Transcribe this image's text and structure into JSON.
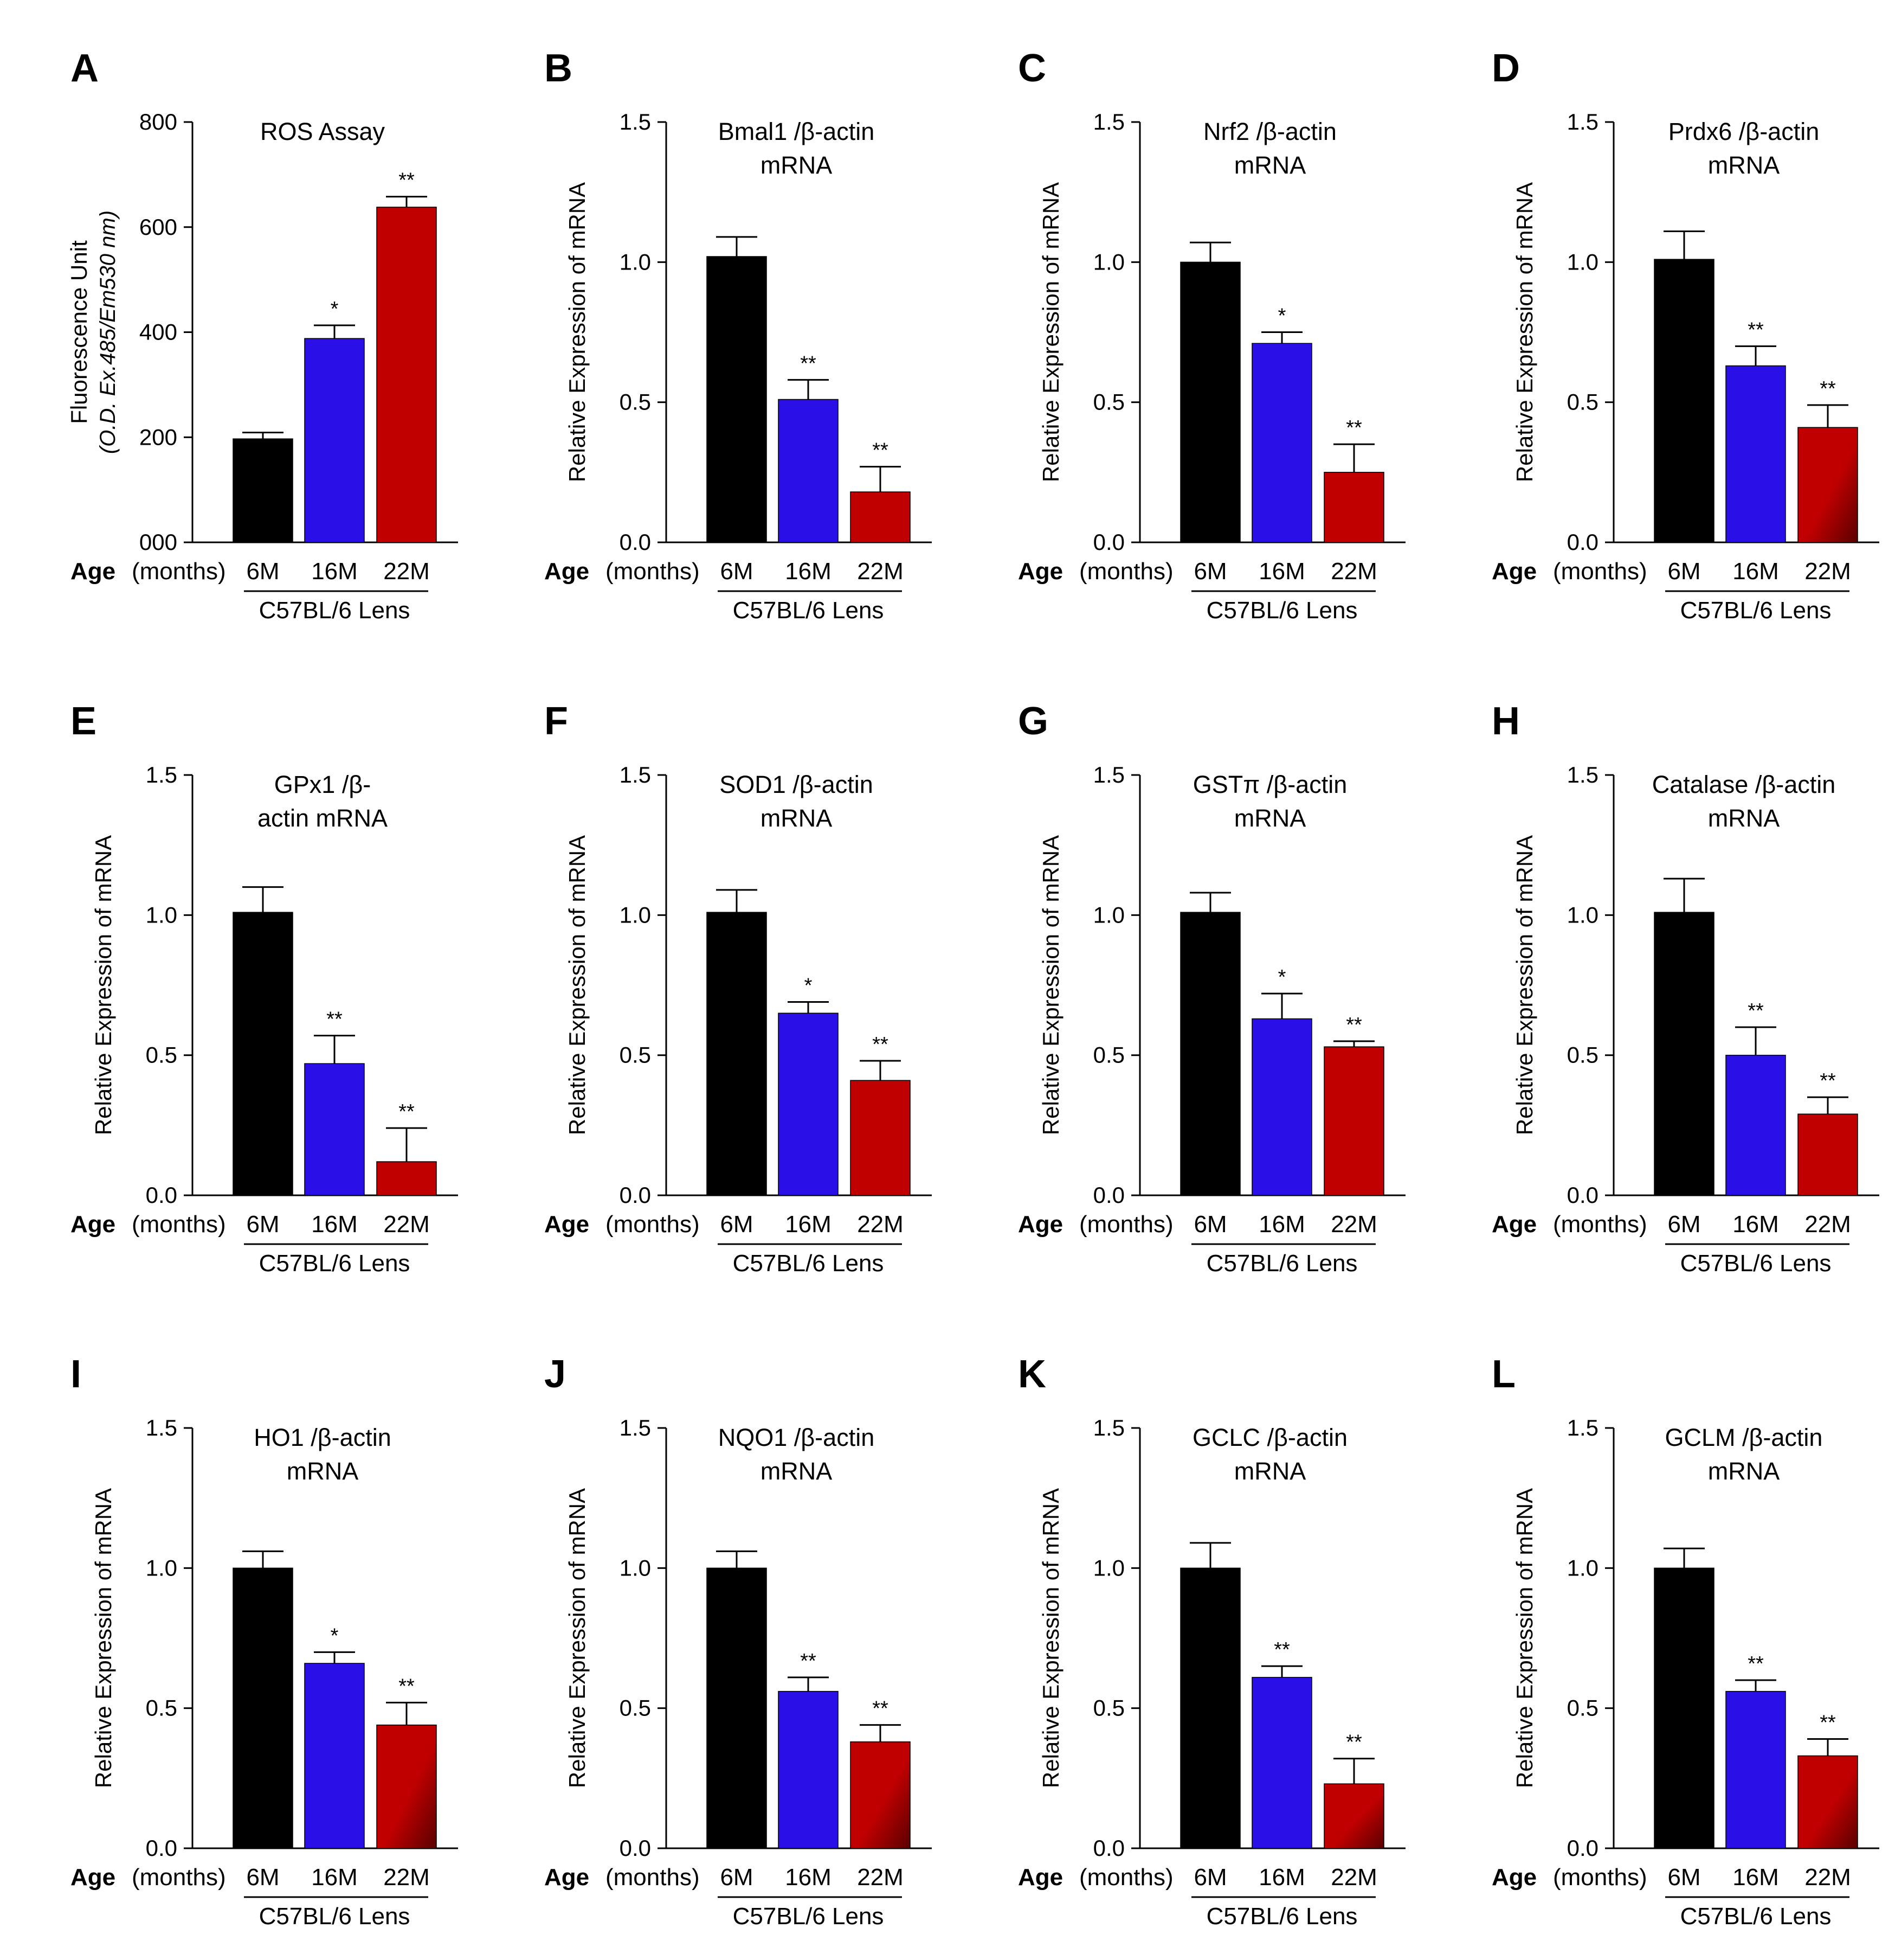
{
  "figure": {
    "colors": {
      "6M": "#000000",
      "16M": "#2a10e6",
      "22M": "#c00000",
      "22M_dark": "#5a0000"
    },
    "x_axis": {
      "age_label": "Age",
      "age_unit": "(months)",
      "group_label": "C57BL/6 Lens"
    }
  },
  "chart_data": [
    {
      "panel": "A",
      "type": "bar",
      "title": [
        "ROS Assay"
      ],
      "ylabel": "Fluorescence Unit",
      "ylabel2": "(O.D. Ex.485/Em530 nm)",
      "ylim": [
        0,
        800
      ],
      "yticks": [
        0,
        200,
        400,
        600,
        800
      ],
      "ytick_labels": [
        "000",
        "200",
        "400",
        "600",
        "800"
      ],
      "categories": [
        "6M",
        "16M",
        "22M"
      ],
      "values": [
        197,
        388,
        638
      ],
      "errors": [
        12,
        25,
        20
      ],
      "significance": [
        "",
        "*",
        "**"
      ],
      "gradient_last": false
    },
    {
      "panel": "B",
      "type": "bar",
      "title": [
        "Bmal1 /β-actin",
        "mRNA"
      ],
      "ylabel": "Relative Expression of mRNA",
      "ylim": [
        0,
        1.5
      ],
      "yticks": [
        0,
        0.5,
        1.0,
        1.5
      ],
      "ytick_labels": [
        "0.0",
        "0.5",
        "1.0",
        "1.5"
      ],
      "categories": [
        "6M",
        "16M",
        "22M"
      ],
      "values": [
        1.02,
        0.51,
        0.18
      ],
      "errors": [
        0.07,
        0.07,
        0.09
      ],
      "significance": [
        "",
        "**",
        "**"
      ],
      "gradient_last": false
    },
    {
      "panel": "C",
      "type": "bar",
      "title": [
        "Nrf2 /β-actin",
        "mRNA"
      ],
      "ylabel": "Relative Expression of mRNA",
      "ylim": [
        0,
        1.5
      ],
      "yticks": [
        0,
        0.5,
        1.0,
        1.5
      ],
      "ytick_labels": [
        "0.0",
        "0.5",
        "1.0",
        "1.5"
      ],
      "categories": [
        "6M",
        "16M",
        "22M"
      ],
      "values": [
        1.0,
        0.71,
        0.25
      ],
      "errors": [
        0.07,
        0.04,
        0.1
      ],
      "significance": [
        "",
        "*",
        "**"
      ],
      "gradient_last": false
    },
    {
      "panel": "D",
      "type": "bar",
      "title": [
        "Prdx6 /β-actin",
        "mRNA"
      ],
      "ylabel": "Relative Expression of mRNA",
      "ylim": [
        0,
        1.5
      ],
      "yticks": [
        0,
        0.5,
        1.0,
        1.5
      ],
      "ytick_labels": [
        "0.0",
        "0.5",
        "1.0",
        "1.5"
      ],
      "categories": [
        "6M",
        "16M",
        "22M"
      ],
      "values": [
        1.01,
        0.63,
        0.41
      ],
      "errors": [
        0.1,
        0.07,
        0.08
      ],
      "significance": [
        "",
        "**",
        "**"
      ],
      "gradient_last": true
    },
    {
      "panel": "E",
      "type": "bar",
      "title": [
        "GPx1 /β-",
        "actin mRNA"
      ],
      "ylabel": "Relative Expression of mRNA",
      "ylim": [
        0,
        1.5
      ],
      "yticks": [
        0,
        0.5,
        1.0,
        1.5
      ],
      "ytick_labels": [
        "0.0",
        "0.5",
        "1.0",
        "1.5"
      ],
      "categories": [
        "6M",
        "16M",
        "22M"
      ],
      "values": [
        1.01,
        0.47,
        0.12
      ],
      "errors": [
        0.09,
        0.1,
        0.12
      ],
      "significance": [
        "",
        "**",
        "**"
      ],
      "gradient_last": false
    },
    {
      "panel": "F",
      "type": "bar",
      "title": [
        "SOD1 /β-actin",
        "mRNA"
      ],
      "ylabel": "Relative Expression of mRNA",
      "ylim": [
        0,
        1.5
      ],
      "yticks": [
        0,
        0.5,
        1.0,
        1.5
      ],
      "ytick_labels": [
        "0.0",
        "0.5",
        "1.0",
        "1.5"
      ],
      "categories": [
        "6M",
        "16M",
        "22M"
      ],
      "values": [
        1.01,
        0.65,
        0.41
      ],
      "errors": [
        0.08,
        0.04,
        0.07
      ],
      "significance": [
        "",
        "*",
        "**"
      ],
      "gradient_last": false
    },
    {
      "panel": "G",
      "type": "bar",
      "title": [
        "GSTπ /β-actin",
        "mRNA"
      ],
      "ylabel": "Relative Expression of mRNA",
      "ylim": [
        0,
        1.5
      ],
      "yticks": [
        0,
        0.5,
        1.0,
        1.5
      ],
      "ytick_labels": [
        "0.0",
        "0.5",
        "1.0",
        "1.5"
      ],
      "categories": [
        "6M",
        "16M",
        "22M"
      ],
      "values": [
        1.01,
        0.63,
        0.53
      ],
      "errors": [
        0.07,
        0.09,
        0.02
      ],
      "significance": [
        "",
        "*",
        "**"
      ],
      "gradient_last": false
    },
    {
      "panel": "H",
      "type": "bar",
      "title": [
        "Catalase /β-actin",
        "mRNA"
      ],
      "ylabel": "Relative Expression of mRNA",
      "ylim": [
        0,
        1.5
      ],
      "yticks": [
        0,
        0.5,
        1.0,
        1.5
      ],
      "ytick_labels": [
        "0.0",
        "0.5",
        "1.0",
        "1.5"
      ],
      "categories": [
        "6M",
        "16M",
        "22M"
      ],
      "values": [
        1.01,
        0.5,
        0.29
      ],
      "errors": [
        0.12,
        0.1,
        0.06
      ],
      "significance": [
        "",
        "**",
        "**"
      ],
      "gradient_last": false
    },
    {
      "panel": "I",
      "type": "bar",
      "title": [
        "HO1 /β-actin",
        "mRNA"
      ],
      "ylabel": "Relative Expression of mRNA",
      "ylim": [
        0,
        1.5
      ],
      "yticks": [
        0,
        0.5,
        1.0,
        1.5
      ],
      "ytick_labels": [
        "0.0",
        "0.5",
        "1.0",
        "1.5"
      ],
      "categories": [
        "6M",
        "16M",
        "22M"
      ],
      "values": [
        1.0,
        0.66,
        0.44
      ],
      "errors": [
        0.06,
        0.04,
        0.08
      ],
      "significance": [
        "",
        "*",
        "**"
      ],
      "gradient_last": true
    },
    {
      "panel": "J",
      "type": "bar",
      "title": [
        "NQO1 /β-actin",
        "mRNA"
      ],
      "ylabel": "Relative Expression of mRNA",
      "ylim": [
        0,
        1.5
      ],
      "yticks": [
        0,
        0.5,
        1.0,
        1.5
      ],
      "ytick_labels": [
        "0.0",
        "0.5",
        "1.0",
        "1.5"
      ],
      "categories": [
        "6M",
        "16M",
        "22M"
      ],
      "values": [
        1.0,
        0.56,
        0.38
      ],
      "errors": [
        0.06,
        0.05,
        0.06
      ],
      "significance": [
        "",
        "**",
        "**"
      ],
      "gradient_last": true
    },
    {
      "panel": "K",
      "type": "bar",
      "title": [
        "GCLC /β-actin",
        "mRNA"
      ],
      "ylabel": "Relative Expression of mRNA",
      "ylim": [
        0,
        1.5
      ],
      "yticks": [
        0,
        0.5,
        1.0,
        1.5
      ],
      "ytick_labels": [
        "0.0",
        "0.5",
        "1.0",
        "1.5"
      ],
      "categories": [
        "6M",
        "16M",
        "22M"
      ],
      "values": [
        1.0,
        0.61,
        0.23
      ],
      "errors": [
        0.09,
        0.04,
        0.09
      ],
      "significance": [
        "",
        "**",
        "**"
      ],
      "gradient_last": true
    },
    {
      "panel": "L",
      "type": "bar",
      "title": [
        "GCLM /β-actin",
        "mRNA"
      ],
      "ylabel": "Relative Expression of mRNA",
      "ylim": [
        0,
        1.5
      ],
      "yticks": [
        0,
        0.5,
        1.0,
        1.5
      ],
      "ytick_labels": [
        "0.0",
        "0.5",
        "1.0",
        "1.5"
      ],
      "categories": [
        "6M",
        "16M",
        "22M"
      ],
      "values": [
        1.0,
        0.56,
        0.33
      ],
      "errors": [
        0.07,
        0.04,
        0.06
      ],
      "significance": [
        "",
        "**",
        "**"
      ],
      "gradient_last": true
    }
  ]
}
